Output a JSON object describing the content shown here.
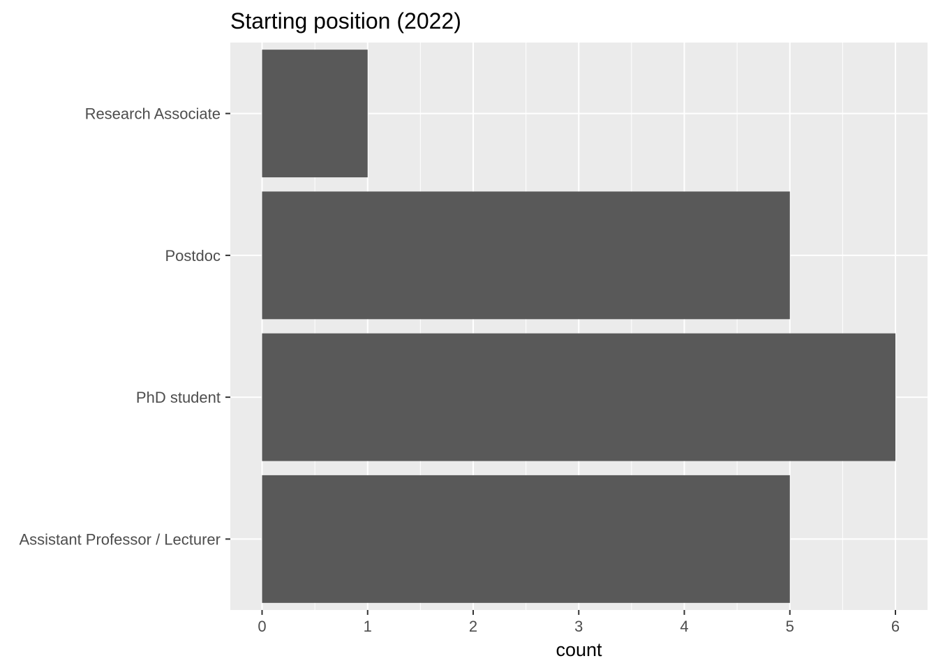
{
  "chart_data": {
    "type": "bar",
    "orientation": "horizontal",
    "title": "Starting position (2022)",
    "xlabel": "count",
    "ylabel": "",
    "categories": [
      "Research Associate",
      "Postdoc",
      "PhD student",
      "Assistant Professor / Lecturer"
    ],
    "values": [
      1,
      5,
      6,
      5
    ],
    "xlim": [
      0,
      6
    ],
    "x_ticks": [
      0,
      1,
      2,
      3,
      4,
      5,
      6
    ],
    "grid": true,
    "legend": "none",
    "colors": {
      "bar": "#595959",
      "panel_background": "#ebebeb",
      "grid": "#ffffff",
      "tick_text": "#4d4d4d",
      "tick_mark": "#333333"
    }
  }
}
